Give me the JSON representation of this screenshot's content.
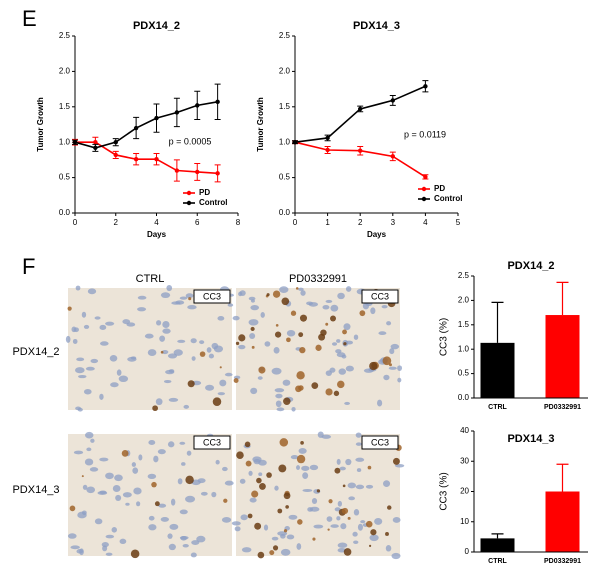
{
  "figure": {
    "panel_labels": [
      "E",
      "F"
    ],
    "image_columns": [
      "CTRL",
      "PD0332991"
    ],
    "image_rows": [
      "PDX14_2",
      "PDX14_3"
    ],
    "image_tag": "CC3"
  },
  "chart_data": [
    {
      "type": "line",
      "title": "PDX14_2",
      "x_label": "Days",
      "y_label": "Tumor Growth",
      "annotation": "p = 0.0005",
      "x": [
        0,
        1,
        2,
        3,
        4,
        5,
        6,
        7
      ],
      "xlim": [
        0,
        8
      ],
      "xticks": [
        0,
        2,
        4,
        6,
        8
      ],
      "ylim": [
        0,
        2.5
      ],
      "yticks": [
        {
          "value": 0,
          "label": "0.0"
        },
        0.5,
        {
          "value": 1,
          "label": "1.0"
        },
        1.5,
        {
          "value": 2,
          "label": "2.0"
        },
        2.5
      ],
      "legend": "lower right",
      "series": [
        {
          "name": "PD",
          "color": "#ff0000",
          "values": [
            1.0,
            1.0,
            0.82,
            0.76,
            0.76,
            0.6,
            0.58,
            0.56
          ],
          "errors": [
            0.04,
            0.07,
            0.05,
            0.08,
            0.08,
            0.15,
            0.12,
            0.12
          ]
        },
        {
          "name": "Control",
          "color": "#000000",
          "values": [
            1.0,
            0.92,
            1.0,
            1.2,
            1.34,
            1.42,
            1.52,
            1.57
          ],
          "errors": [
            0.03,
            0.05,
            0.05,
            0.15,
            0.2,
            0.2,
            0.2,
            0.25
          ]
        }
      ]
    },
    {
      "type": "line",
      "title": "PDX14_3",
      "x_label": "Days",
      "y_label": "Tumor Growth",
      "annotation": "p = 0.0119",
      "x": [
        0,
        1,
        2,
        3,
        4
      ],
      "xlim": [
        0,
        5
      ],
      "xticks": [
        0,
        1,
        2,
        3,
        4,
        5
      ],
      "ylim": [
        0,
        2.5
      ],
      "yticks": [
        {
          "value": 0,
          "label": "0.0"
        },
        0.5,
        {
          "value": 1,
          "label": "1.0"
        },
        1.5,
        {
          "value": 2,
          "label": "2.0"
        },
        2.5
      ],
      "legend": "lower right",
      "series": [
        {
          "name": "PD",
          "color": "#ff0000",
          "values": [
            1.0,
            0.89,
            0.88,
            0.8,
            0.51
          ],
          "errors": [
            0.02,
            0.05,
            0.06,
            0.06,
            0.03
          ]
        },
        {
          "name": "Control",
          "color": "#000000",
          "values": [
            1.0,
            1.06,
            1.47,
            1.59,
            1.79
          ],
          "errors": [
            0.02,
            0.04,
            0.04,
            0.07,
            0.08
          ]
        }
      ]
    },
    {
      "type": "bar",
      "title": "PDX14_2",
      "y_label": "CC3 (%)",
      "categories": [
        "CTRL",
        "PD0332991"
      ],
      "values": [
        1.13,
        1.7
      ],
      "errors": [
        0.83,
        0.67
      ],
      "colors": [
        "#000000",
        "#ff0000"
      ],
      "ylim": [
        0,
        2.5
      ],
      "yticks": [
        {
          "value": 0,
          "label": "0.0"
        },
        0.5,
        {
          "value": 1,
          "label": "1.0"
        },
        1.5,
        {
          "value": 2,
          "label": "2.0"
        },
        2.5
      ]
    },
    {
      "type": "bar",
      "title": "PDX14_3",
      "y_label": "CC3 (%)",
      "categories": [
        "CTRL",
        "PD0332991"
      ],
      "values": [
        4.5,
        20
      ],
      "errors": [
        1.5,
        9
      ],
      "colors": [
        "#000000",
        "#ff0000"
      ],
      "ylim": [
        0,
        40
      ],
      "yticks": [
        0,
        10,
        20,
        30,
        40
      ]
    }
  ]
}
